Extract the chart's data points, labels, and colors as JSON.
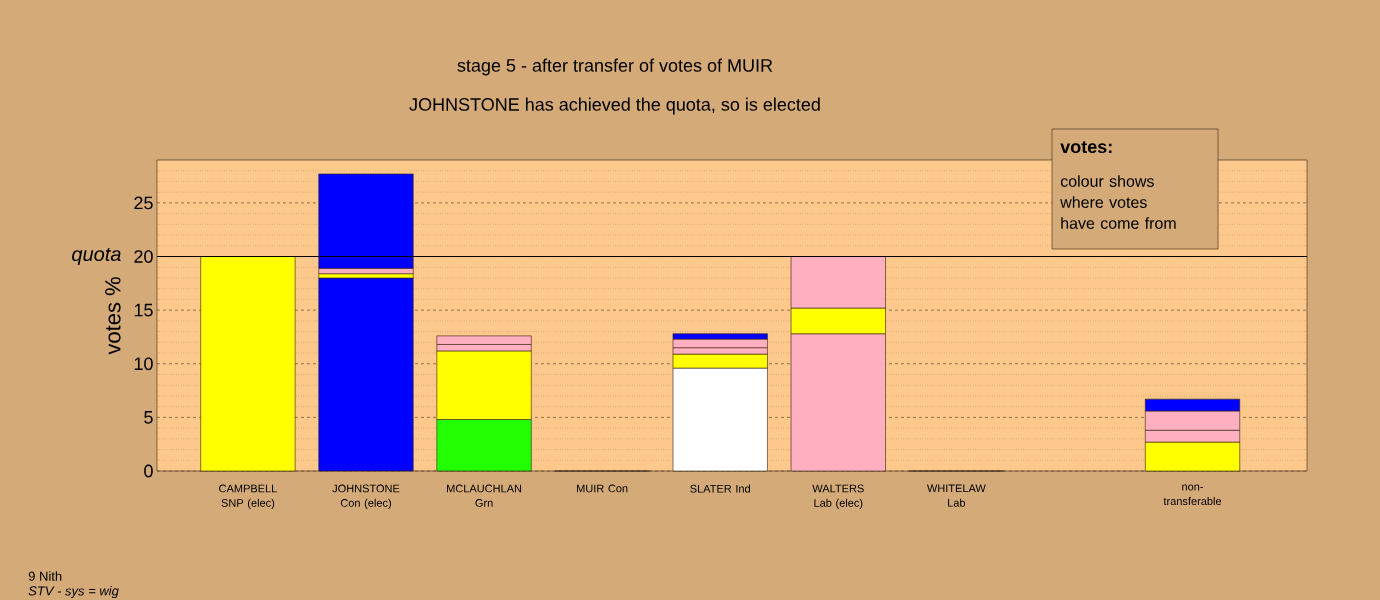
{
  "chart_data": {
    "type": "bar",
    "stacked": true,
    "title": "stage 5 - after transfer of votes of MUIR",
    "subtitle": "JOHNSTONE has achieved the quota, so is elected",
    "ylabel": "votes %",
    "categories": [
      "CAMPBELL SNP (elec)",
      "JOHNSTONE Con (elec)",
      "MCLAUCHLAN Grn",
      "MUIR Con",
      "SLATER Ind",
      "WALTERS Lab (elec)",
      "WHITELAW Lab",
      null,
      "non-transferable"
    ],
    "series": [
      {
        "colors": [
          "#ffff00",
          "#0000ff",
          "#22ff00",
          "#0000ff",
          "#ffffff",
          "#ffb0c0",
          "#ffb0c0",
          "#ffffff",
          "#ffffff"
        ],
        "values": [
          20,
          18.0,
          4.8,
          0,
          9.6,
          12.8,
          0,
          null,
          null
        ]
      },
      {
        "color": "#ffff00",
        "values": [
          null,
          0.4,
          6.4,
          null,
          1.3,
          2.4,
          null,
          null,
          2.7
        ]
      },
      {
        "color": "#ffb0c0",
        "values": [
          null,
          0.5,
          0.6,
          null,
          0.6,
          null,
          null,
          null,
          1.1
        ]
      },
      {
        "color": "#ffb0c0",
        "values": [
          null,
          null,
          0.8,
          null,
          0.8,
          4.8,
          null,
          null,
          1.8
        ]
      },
      {
        "color": "#0000ff",
        "values": [
          null,
          8.8,
          null,
          null,
          0.5,
          null,
          null,
          null,
          1.1
        ]
      }
    ],
    "ylim": [
      0,
      29
    ],
    "yticks": [
      0,
      {
        "value": 1,
        "label": null
      },
      {
        "value": 2,
        "label": null
      },
      {
        "value": 3,
        "label": null
      },
      {
        "value": 4,
        "label": null
      },
      5,
      {
        "value": 6,
        "label": null
      },
      {
        "value": 7,
        "label": null
      },
      {
        "value": 8,
        "label": null
      },
      {
        "value": 9,
        "label": null
      },
      10,
      {
        "value": 11,
        "label": null
      },
      {
        "value": 12,
        "label": null
      },
      {
        "value": 13,
        "label": null
      },
      {
        "value": 14,
        "label": null
      },
      15,
      {
        "value": 16,
        "label": null
      },
      {
        "value": 17,
        "label": null
      },
      {
        "value": 18,
        "label": null
      },
      {
        "value": 19,
        "label": null
      },
      20,
      {
        "value": 21,
        "label": null
      },
      {
        "value": 22,
        "label": null
      },
      {
        "value": 23,
        "label": null
      },
      {
        "value": 24,
        "label": null
      },
      25,
      {
        "value": 26,
        "label": null
      },
      {
        "value": 27,
        "label": null
      },
      {
        "value": 28,
        "label": null
      },
      {
        "value": 29,
        "label": null
      }
    ],
    "grid": "y",
    "ref_lines": [
      {
        "axis": "y",
        "value": 20,
        "label": "quota",
        "color": "#000000"
      }
    ],
    "annotations": [
      "votes:",
      "colour shows where votes have come from",
      "9 Nith",
      "STV - sys = wig"
    ]
  }
}
